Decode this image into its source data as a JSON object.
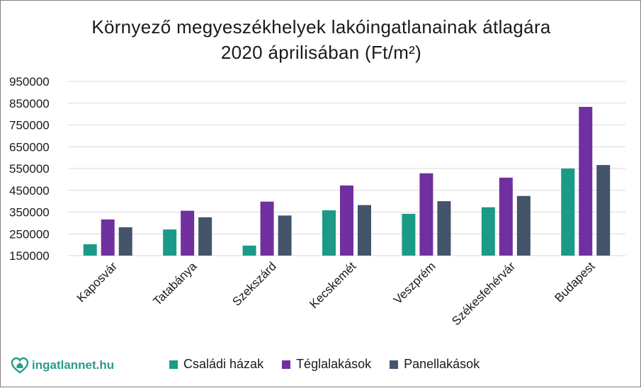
{
  "title": {
    "line1": "Környező megyeszékhelyek lakóingatlanainak átlagára",
    "line2": "2020 áprilisában (Ft/m²)"
  },
  "brand": {
    "logo_text": "ingatlannet.hu",
    "color": "#2a9b8a"
  },
  "chart_data": {
    "type": "bar",
    "title": "Környező megyeszékhelyek lakóingatlanainak átlagára 2020 áprilisában (Ft/m²)",
    "categories": [
      "Kaposvár",
      "Tatabánya",
      "Szekszárd",
      "Kecskemét",
      "Veszprém",
      "Székesfehérvár",
      "Budapest"
    ],
    "series": [
      {
        "name": "Családi házak",
        "color": "#1a9a87",
        "values": [
          202000,
          270000,
          196000,
          358000,
          342000,
          372000,
          550000
        ]
      },
      {
        "name": "Téglalakások",
        "color": "#7030a0",
        "values": [
          316000,
          356000,
          398000,
          472000,
          528000,
          508000,
          833000
        ]
      },
      {
        "name": "Panellakások",
        "color": "#44546a",
        "values": [
          280000,
          326000,
          334000,
          382000,
          400000,
          424000,
          566000
        ]
      }
    ],
    "yticks": [
      "950000",
      "850000",
      "750000",
      "650000",
      "550000",
      "450000",
      "350000",
      "250000",
      "150000"
    ],
    "ylim": [
      150000,
      950000
    ],
    "grid": true,
    "legend_position": "bottom"
  }
}
